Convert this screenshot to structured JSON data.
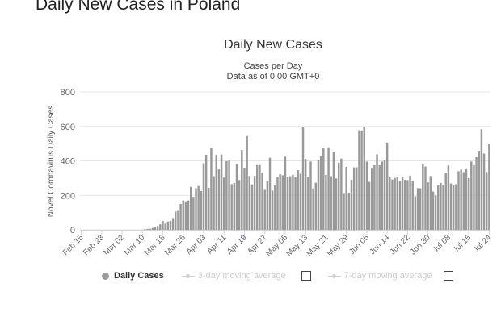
{
  "page": {
    "title": "Daily New Cases in Poland"
  },
  "legend": {
    "daily_cases": "Daily Cases",
    "moving_avg_3": "3-day moving average",
    "moving_avg_7": "7-day moving average"
  },
  "colors": {
    "bar": "#999999",
    "grid": "#e6e6e6",
    "axis": "#ccd6eb",
    "legend_inactive": "#cccccc"
  },
  "chart_data": {
    "type": "bar",
    "title": "Daily New Cases",
    "subtitle": "Cases per Day",
    "subtitle2": "Data as of 0:00 GMT+0",
    "ylabel": "Novel Coronavirus Daily Cases",
    "xlabel": "",
    "ylim": [
      0,
      800
    ],
    "yticks": [
      0,
      200,
      400,
      600,
      800
    ],
    "grid": true,
    "legend_position": "bottom",
    "start_date": "2020-02-15",
    "xtick_labels": [
      "Feb 15",
      "Feb 23",
      "Mar 02",
      "Mar 10",
      "Mar 18",
      "Mar 26",
      "Apr 03",
      "Apr 11",
      "Apr 19",
      "Apr 27",
      "May 05",
      "May 13",
      "May 21",
      "May 29",
      "Jun 06",
      "Jun 14",
      "Jun 22",
      "Jun 30",
      "Jul 08",
      "Jul 16",
      "Jul 24"
    ],
    "series": [
      {
        "name": "Daily Cases",
        "values": [
          0,
          0,
          0,
          0,
          0,
          0,
          0,
          0,
          0,
          0,
          0,
          0,
          0,
          0,
          0,
          0,
          0,
          0,
          0,
          0,
          0,
          0,
          0,
          0,
          1,
          4,
          5,
          6,
          11,
          17,
          22,
          32,
          51,
          36,
          48,
          52,
          68,
          106,
          110,
          150,
          170,
          165,
          170,
          249,
          191,
          241,
          254,
          225,
          386,
          435,
          244,
          475,
          311,
          435,
          350,
          437,
          303,
          398,
          402,
          265,
          271,
          380,
          289,
          463,
          360,
          544,
          312,
          263,
          313,
          375,
          376,
          331,
          232,
          282,
          418,
          227,
          258,
          306,
          322,
          316,
          424,
          305,
          311,
          319,
          305,
          346,
          325,
          594,
          411,
          308,
          396,
          240,
          273,
          403,
          426,
          472,
          318,
          478,
          311,
          452,
          298,
          389,
          413,
          213,
          365,
          215,
          290,
          362,
          363,
          578,
          576,
          597,
          396,
          278,
          359,
          374,
          438,
          374,
          396,
          407,
          506,
          304,
          292,
          300,
          306,
          285,
          308,
          290,
          288,
          314,
          282,
          194,
          242,
          240,
          380,
          367,
          275,
          312,
          222,
          199,
          258,
          272,
          262,
          329,
          373,
          269,
          260,
          264,
          340,
          349,
          335,
          356,
          300,
          396,
          375,
          421,
          458,
          584,
          442,
          335,
          501
        ]
      }
    ]
  }
}
